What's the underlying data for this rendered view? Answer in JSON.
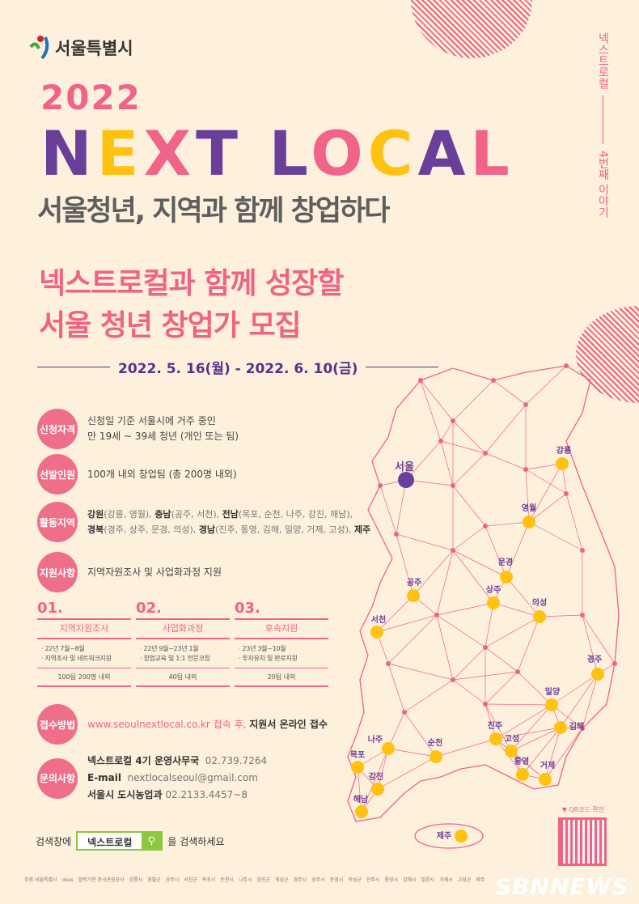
{
  "logo": {
    "text": "서울특별시"
  },
  "hero": {
    "year": "2022",
    "title": "NEXT LOCAL",
    "subtitle": "서울청년, 지역과 함께 창업하다"
  },
  "side": {
    "series": "넥스트로컬",
    "episode": "4번째 이야기"
  },
  "headline": {
    "line1": "넥스트로컬과 함께 성장할",
    "line2": "서울 청년 창업가 모집"
  },
  "period": "2022. 5. 16(월) - 2022. 6. 10(금)",
  "info": {
    "eligibility": {
      "label": "신청자격",
      "line1": "신청일 기준 서울시에 거주 중인",
      "line2": "만 19세 ~ 39세 청년 (개인 또는 팀)"
    },
    "selection": {
      "label": "선발인원",
      "text": "100개 내외 창업팀 (총 200명 내외)"
    },
    "regions": {
      "label": "활동지역",
      "items": [
        {
          "region": "강원",
          "cities": "(강릉, 영월),"
        },
        {
          "region": "충남",
          "cities": "(공주, 서천),"
        },
        {
          "region": "전남",
          "cities": "(목포, 순천, 나주, 강진, 해남),"
        },
        {
          "region": "경북",
          "cities": "(경주, 상주, 문경, 의성),"
        },
        {
          "region": "경남",
          "cities": "(진주, 통영, 김해, 밀양, 거제, 고성),"
        },
        {
          "region": "제주",
          "cities": ""
        }
      ]
    },
    "support": {
      "label": "지원사항",
      "text": "지역자원조사 및 사업화과정 지원"
    }
  },
  "steps": [
    {
      "num": "01.",
      "title": "지역자원조사",
      "detail1": "· 22년 7월~8월",
      "detail2": "· 지역조사 및 네트워크지원",
      "count": "100팀 200명 내외"
    },
    {
      "num": "02.",
      "title": "사업화과정",
      "detail1": "· 22년 9월~23년 1월",
      "detail2": "· 창업교육 및 1:1 전문코칭",
      "count": "40팀 내외"
    },
    {
      "num": "03.",
      "title": "후속지원",
      "detail1": "· 23년 3월~10월",
      "detail2": "· 투자유치 및 판로지원",
      "count": "20팀 내외"
    }
  ],
  "apply": {
    "label": "접수방법",
    "url": "www.seoulnextlocal.co.kr 접속 후,",
    "text": "지원서 온라인 접수"
  },
  "contact": {
    "label": "문의사항",
    "office": "넥스트로컬 4기 운영사무국",
    "office_phone": "02.739.7264",
    "email_label": "E-mail",
    "email": "nextlocalseoul@gmail.com",
    "dept": "서울시 도시농업과",
    "dept_phone": "02.2133.4457~8"
  },
  "search": {
    "prefix": "검색창에",
    "query": "넥스트로컬",
    "suffix": "을 검색하세요"
  },
  "qr": {
    "label": "▼ QR코드 확인"
  },
  "map": {
    "cities": [
      {
        "name": "서울",
        "hub": true
      },
      {
        "name": "강릉"
      },
      {
        "name": "영월"
      },
      {
        "name": "문경"
      },
      {
        "name": "상주"
      },
      {
        "name": "공주"
      },
      {
        "name": "의성"
      },
      {
        "name": "서천"
      },
      {
        "name": "경주"
      },
      {
        "name": "밀양"
      },
      {
        "name": "김해"
      },
      {
        "name": "진주"
      },
      {
        "name": "고성"
      },
      {
        "name": "통영"
      },
      {
        "name": "거제"
      },
      {
        "name": "나주"
      },
      {
        "name": "순천"
      },
      {
        "name": "목포"
      },
      {
        "name": "강진"
      },
      {
        "name": "해남"
      },
      {
        "name": "제주"
      }
    ]
  },
  "footer": {
    "sponsors": [
      "주최 서울특별시",
      "okus",
      "협력기관 한국관광공사",
      "강릉시",
      "영월군",
      "공주시",
      "서천군",
      "목포시",
      "순천시",
      "나주시",
      "강진군",
      "해남군",
      "경주시",
      "상주시",
      "문경시",
      "의성군",
      "진주시",
      "통영시",
      "김해시",
      "밀양시",
      "거제시",
      "고성군",
      "제주"
    ]
  },
  "watermark": "SBNNEWS",
  "colors": {
    "background": "#fdf0dc",
    "pink": "#ef6484",
    "purple": "#6a3f9a",
    "yellow": "#ffc20e",
    "green": "#8dc63f"
  }
}
